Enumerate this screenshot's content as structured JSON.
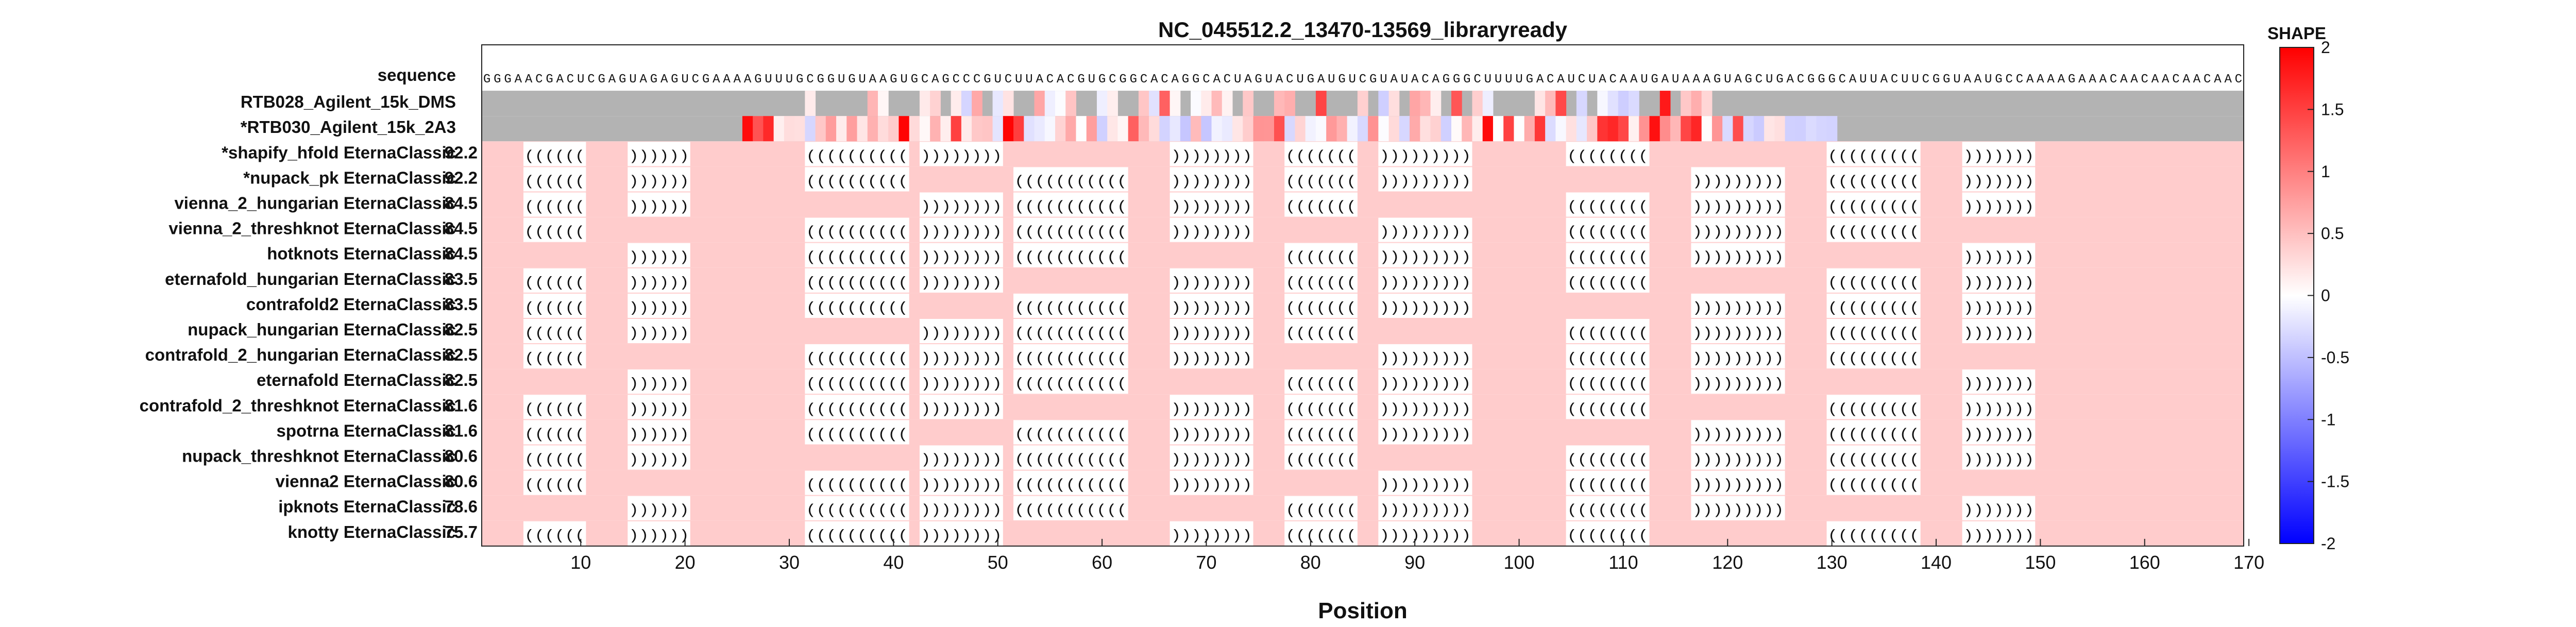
{
  "chart_data": {
    "type": "heatmap",
    "title": "NC_045512.2_13470-13569_libraryready",
    "xlabel": "Position",
    "xlim": [
      1,
      170
    ],
    "xticks": [
      10,
      20,
      30,
      40,
      50,
      60,
      70,
      80,
      90,
      100,
      110,
      120,
      130,
      140,
      150,
      160,
      170
    ],
    "sequence_label": "sequence",
    "sequence": "GGGAACGACUCGAGUAGAGUCGAAAAGUUUGCGGUGUAAGUGCAGCCCGUCUUACACGUGCGGCACAGGCACUAGUACUGAUGUCGUAUACAGGGCUUUUGACAUCUACAAUGAUAAAGUAGCUGACGGGCAUUACUUCGGUAAUGCCAAAAGAAACAACAACAACAAC",
    "data_rows": [
      {
        "label": "RTB028_Agilent_15k_DMS",
        "data_range": [
          32,
          118
        ]
      },
      {
        "label": "*RTB030_Agilent_15k_2A3",
        "data_range": [
          26,
          130
        ]
      }
    ],
    "structures": [
      {
        "label": "*shapify_hfold EternaClassic",
        "score": "92.2"
      },
      {
        "label": "*nupack_pk EternaClassic",
        "score": "92.2"
      },
      {
        "label": "vienna_2_hungarian EternaClassic",
        "score": "84.5"
      },
      {
        "label": "vienna_2_threshknot EternaClassic",
        "score": "84.5"
      },
      {
        "label": "hotknots EternaClassic",
        "score": "84.5"
      },
      {
        "label": "eternafold_hungarian EternaClassic",
        "score": "83.5"
      },
      {
        "label": "contrafold2 EternaClassic",
        "score": "83.5"
      },
      {
        "label": "nupack_hungarian EternaClassic",
        "score": "82.5"
      },
      {
        "label": "contrafold_2_hungarian EternaClassic",
        "score": "82.5"
      },
      {
        "label": "eternafold EternaClassic",
        "score": "82.5"
      },
      {
        "label": "contrafold_2_threshknot EternaClassic",
        "score": "81.6"
      },
      {
        "label": "spotrna EternaClassic",
        "score": "81.6"
      },
      {
        "label": "nupack_threshknot EternaClassic",
        "score": "80.6"
      },
      {
        "label": "vienna2 EternaClassic",
        "score": "80.6"
      },
      {
        "label": "ipknots EternaClassic",
        "score": "78.6"
      },
      {
        "label": "knotty EternaClassic",
        "score": "75.7"
      }
    ],
    "colorbar": {
      "title": "SHAPE",
      "range": [
        -2,
        2
      ],
      "ticks": [
        "2",
        "1.5",
        "1",
        "0.5",
        "0",
        "-0.5",
        "-1",
        "-1.5",
        "-2"
      ],
      "colors": {
        "low": "#0000ff",
        "mid": "#ffffff",
        "high": "#ff0000",
        "nodata": "#b3b3b3",
        "unpaired": "#ffcccc"
      }
    }
  }
}
